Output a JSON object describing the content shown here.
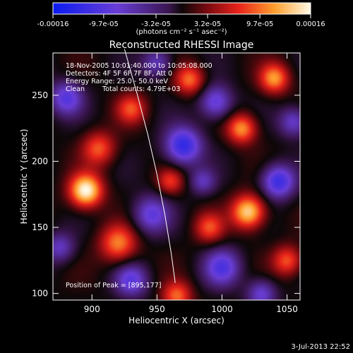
{
  "chart_data": {
    "type": "heatmap",
    "title": "Reconstructed RHESSI Image",
    "xlabel": "Heliocentric X (arcsec)",
    "ylabel": "Heliocentric Y (arcsec)",
    "xlim": [
      870,
      1060
    ],
    "ylim": [
      95,
      282
    ],
    "x_ticks": [
      "900",
      "950",
      "1000",
      "1050"
    ],
    "y_ticks": [
      "100",
      "150",
      "200",
      "250"
    ],
    "x_tick_values": [
      900,
      950,
      1000,
      1050
    ],
    "y_tick_values": [
      100,
      150,
      200,
      250
    ],
    "colorbar": {
      "ticks": [
        "-0.00016",
        "-9.7e-05",
        "-3.2e-05",
        "3.2e-05",
        "9.7e-05",
        "0.00016"
      ],
      "tick_values": [
        -0.00016,
        -9.7e-05,
        -3.2e-05,
        3.2e-05,
        9.7e-05,
        0.00016
      ],
      "range": [
        -0.00016,
        0.00016
      ],
      "unit": "(photons cm⁻² s⁻¹ asec⁻²)"
    },
    "annotations": {
      "time_range": "18-Nov-2005 10:01:40.000 to 10:05:08.000",
      "detectors": "Detectors: 4F 5F 6F 7F 8F, Att 0",
      "energy": "Energy Range: 25.0 - 50.0 keV",
      "method": "Clean",
      "counts": "Total counts: 4.79E+03",
      "peak": "Position of Peak = [895,177]"
    },
    "limb": [
      [
        925,
        285
      ],
      [
        935,
        250
      ],
      [
        943,
        220
      ],
      [
        950,
        190
      ],
      [
        956,
        160
      ],
      [
        961,
        130
      ],
      [
        964,
        108
      ]
    ],
    "blobs": [
      {
        "x": 895,
        "y": 178,
        "amp": 1.0,
        "sigma": 9
      },
      {
        "x": 1020,
        "y": 162,
        "amp": 0.9,
        "sigma": 9
      },
      {
        "x": 1015,
        "y": 225,
        "amp": 0.7,
        "sigma": 8
      },
      {
        "x": 1040,
        "y": 263,
        "amp": 0.7,
        "sigma": 8
      },
      {
        "x": 975,
        "y": 262,
        "amp": 0.6,
        "sigma": 8
      },
      {
        "x": 920,
        "y": 138,
        "amp": 0.65,
        "sigma": 10
      },
      {
        "x": 905,
        "y": 210,
        "amp": 0.55,
        "sigma": 9
      },
      {
        "x": 1050,
        "y": 125,
        "amp": 0.55,
        "sigma": 8
      },
      {
        "x": 965,
        "y": 98,
        "amp": 0.6,
        "sigma": 8
      },
      {
        "x": 990,
        "y": 150,
        "amp": 0.5,
        "sigma": 8
      },
      {
        "x": 930,
        "y": 240,
        "amp": 0.5,
        "sigma": 8
      },
      {
        "x": 960,
        "y": 185,
        "amp": 0.45,
        "sigma": 7
      },
      {
        "x": 970,
        "y": 212,
        "amp": -0.8,
        "sigma": 10
      },
      {
        "x": 1043,
        "y": 185,
        "amp": -0.75,
        "sigma": 9
      },
      {
        "x": 995,
        "y": 245,
        "amp": -0.6,
        "sigma": 9
      },
      {
        "x": 880,
        "y": 248,
        "amp": -0.6,
        "sigma": 9
      },
      {
        "x": 945,
        "y": 160,
        "amp": -0.55,
        "sigma": 10
      },
      {
        "x": 1000,
        "y": 120,
        "amp": -0.6,
        "sigma": 10
      },
      {
        "x": 930,
        "y": 110,
        "amp": -0.55,
        "sigma": 9
      },
      {
        "x": 1030,
        "y": 100,
        "amp": -0.5,
        "sigma": 8
      },
      {
        "x": 875,
        "y": 135,
        "amp": -0.45,
        "sigma": 8
      },
      {
        "x": 1055,
        "y": 230,
        "amp": -0.5,
        "sigma": 8
      },
      {
        "x": 950,
        "y": 275,
        "amp": -0.45,
        "sigma": 8
      },
      {
        "x": 985,
        "y": 185,
        "amp": -0.4,
        "sigma": 7
      }
    ]
  },
  "footer": {
    "timestamp": "3-Jul-2013 22:52"
  }
}
